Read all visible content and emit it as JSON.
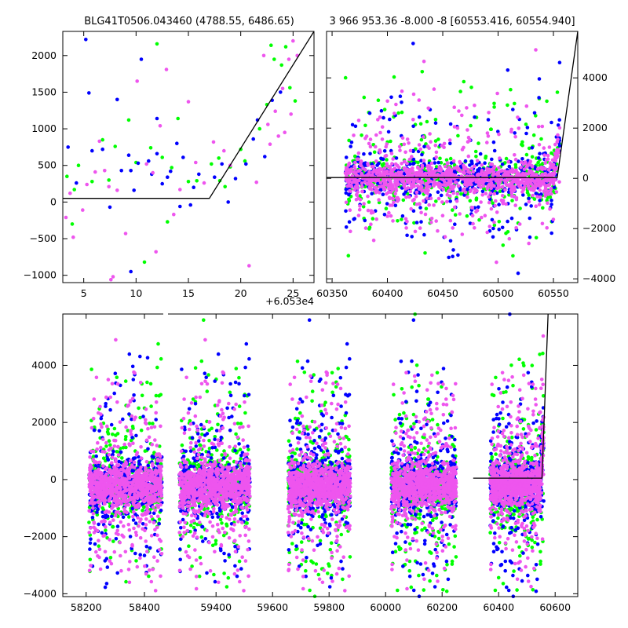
{
  "chart_data": [
    {
      "type": "scatter",
      "title": "BLG41T0506.043460 (4788.55, 6486.65)",
      "offset_label": "+6.053e4",
      "xlim": [
        3,
        27
      ],
      "ylim": [
        -1100,
        2330
      ],
      "xticks": [
        5,
        10,
        15,
        20,
        25
      ],
      "xtick_labels": [
        "5",
        "10",
        "15",
        "20",
        "25"
      ],
      "yticks": [
        -1000,
        -500,
        0,
        500,
        1000,
        1500,
        2000
      ],
      "ytick_labels": [
        "−1000",
        "−500",
        "0",
        "500",
        "1000",
        "1500",
        "2000"
      ],
      "y_axis_side": "left",
      "grid": false,
      "series_colors": [
        "#0000ff",
        "#00ff00",
        "#ee55ee"
      ],
      "model_line": {
        "x": [
          3,
          17,
          27
        ],
        "y": [
          50,
          50,
          2330
        ]
      },
      "points": {
        "blue": [
          [
            3.5,
            750
          ],
          [
            4.3,
            260
          ],
          [
            5.2,
            2220
          ],
          [
            5.5,
            1490
          ],
          [
            5.8,
            700
          ],
          [
            6.8,
            720
          ],
          [
            7.5,
            -70
          ],
          [
            8.2,
            1400
          ],
          [
            8.6,
            430
          ],
          [
            9.3,
            640
          ],
          [
            9.5,
            430
          ],
          [
            9.8,
            160
          ],
          [
            10.2,
            530
          ],
          [
            10.5,
            1950
          ],
          [
            11.2,
            560
          ],
          [
            11.5,
            380
          ],
          [
            12.0,
            660
          ],
          [
            12.5,
            250
          ],
          [
            13.0,
            340
          ],
          [
            13.3,
            420
          ],
          [
            14.2,
            -60
          ],
          [
            14.5,
            610
          ],
          [
            15.2,
            -40
          ],
          [
            15.5,
            200
          ],
          [
            16.0,
            380
          ],
          [
            17.5,
            340
          ],
          [
            18.2,
            520
          ],
          [
            18.8,
            0
          ],
          [
            19.5,
            320
          ],
          [
            20.5,
            520
          ],
          [
            21.2,
            860
          ],
          [
            21.6,
            1120
          ],
          [
            22.3,
            620
          ],
          [
            23.0,
            1390
          ],
          [
            23.8,
            1500
          ],
          [
            9.5,
            -950
          ],
          [
            12.0,
            1140
          ],
          [
            13.9,
            800
          ]
        ],
        "green": [
          [
            3.4,
            350
          ],
          [
            3.9,
            -300
          ],
          [
            4.1,
            170
          ],
          [
            4.5,
            500
          ],
          [
            5.8,
            280
          ],
          [
            6.8,
            850
          ],
          [
            7.4,
            300
          ],
          [
            8.0,
            760
          ],
          [
            9.3,
            1120
          ],
          [
            10.0,
            540
          ],
          [
            10.8,
            -820
          ],
          [
            11.4,
            740
          ],
          [
            12.0,
            2160
          ],
          [
            13.0,
            -270
          ],
          [
            13.4,
            470
          ],
          [
            14.0,
            1140
          ],
          [
            15.0,
            280
          ],
          [
            15.8,
            290
          ],
          [
            17.2,
            520
          ],
          [
            18.0,
            290
          ],
          [
            18.5,
            210
          ],
          [
            19.0,
            480
          ],
          [
            20.0,
            720
          ],
          [
            20.4,
            560
          ],
          [
            21.8,
            1000
          ],
          [
            22.5,
            1330
          ],
          [
            22.9,
            2140
          ],
          [
            23.2,
            1950
          ],
          [
            23.9,
            1870
          ],
          [
            24.7,
            1560
          ],
          [
            25.2,
            1380
          ],
          [
            24.3,
            2120
          ],
          [
            12.5,
            610
          ],
          [
            17.9,
            600
          ]
        ],
        "magenta": [
          [
            3.3,
            -210
          ],
          [
            3.7,
            120
          ],
          [
            4.0,
            -480
          ],
          [
            4.9,
            -110
          ],
          [
            5.3,
            240
          ],
          [
            6.1,
            410
          ],
          [
            6.5,
            830
          ],
          [
            7.0,
            430
          ],
          [
            7.4,
            210
          ],
          [
            7.8,
            -1020
          ],
          [
            8.2,
            160
          ],
          [
            9.0,
            -430
          ],
          [
            10.1,
            1650
          ],
          [
            11.0,
            520
          ],
          [
            11.6,
            400
          ],
          [
            12.3,
            1040
          ],
          [
            12.9,
            1810
          ],
          [
            13.6,
            -170
          ],
          [
            14.2,
            170
          ],
          [
            15.0,
            1370
          ],
          [
            15.7,
            540
          ],
          [
            16.5,
            260
          ],
          [
            17.4,
            820
          ],
          [
            18.4,
            700
          ],
          [
            19.0,
            500
          ],
          [
            20.8,
            -870
          ],
          [
            21.5,
            270
          ],
          [
            22.2,
            2000
          ],
          [
            22.6,
            1060
          ],
          [
            23.3,
            1240
          ],
          [
            24.0,
            1550
          ],
          [
            24.6,
            1950
          ],
          [
            25.0,
            2200
          ],
          [
            25.4,
            2000
          ],
          [
            24.8,
            1200
          ],
          [
            24.2,
            950
          ],
          [
            23.6,
            900
          ],
          [
            7.6,
            -1060
          ],
          [
            11.9,
            -680
          ],
          [
            22.8,
            790
          ]
        ]
      }
    },
    {
      "type": "scatter",
      "title": "3 966 953.36 -8.000 -8 [60553.416, 60554.940]",
      "xlim": [
        60345,
        60572
      ],
      "ylim": [
        -4150,
        5850
      ],
      "xticks": [
        60350,
        60400,
        60450,
        60500,
        60550
      ],
      "xtick_labels": [
        "60350",
        "60400",
        "60450",
        "60500",
        "60550"
      ],
      "yticks": [
        -4000,
        -2000,
        0,
        2000,
        4000
      ],
      "ytick_labels": [
        "−4000",
        "−2000",
        "0",
        "2000",
        "4000"
      ],
      "y_axis_side": "right",
      "grid": false,
      "series_colors": [
        "#0000ff",
        "#00ff00",
        "#ee55ee"
      ],
      "model_line": {
        "x": [
          60345,
          60553.4,
          60572
        ],
        "y": [
          30,
          30,
          5850
        ]
      },
      "point_x_range": [
        60362,
        60556
      ]
    },
    {
      "type": "scatter",
      "xlim": [
        58120,
        60680
      ],
      "ylim": [
        -4100,
        5800
      ],
      "xticks": [
        58200,
        58400,
        59400,
        59600,
        59800,
        60000,
        60200,
        60400,
        60600
      ],
      "xtick_labels": [
        "58200",
        "58400",
        "59400",
        "59600",
        "59800",
        "60000",
        "60200",
        "60400",
        "60600"
      ],
      "yticks": [
        -4000,
        -2000,
        0,
        2000,
        4000
      ],
      "ytick_labels": [
        "−4000",
        "−2000",
        "0",
        "2000",
        "4000"
      ],
      "y_axis_side": "left",
      "grid": false,
      "broken_x_axis": true,
      "series_colors": [
        "#0000ff",
        "#00ff00",
        "#ee55ee"
      ],
      "seasons": [
        [
          58210,
          58460
        ],
        [
          59270,
          59520
        ],
        [
          59655,
          59875
        ],
        [
          60020,
          60250
        ],
        [
          60370,
          60560
        ]
      ],
      "model_line": {
        "x": [
          60310,
          60553.4,
          60575
        ],
        "y": [
          50,
          50,
          5800
        ]
      }
    }
  ]
}
